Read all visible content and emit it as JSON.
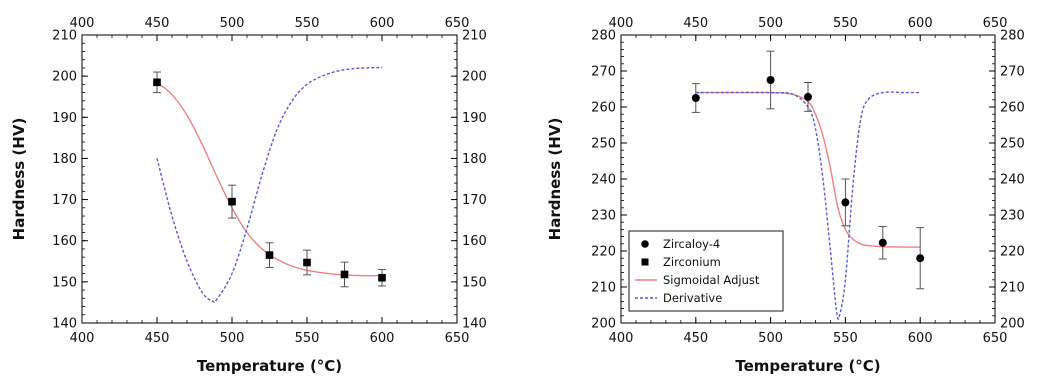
{
  "chart_data": [
    {
      "type": "scatter",
      "xlabel": "Temperature (°C)",
      "ylabel": "Hardness (HV)",
      "xlim": [
        400,
        650
      ],
      "ylim": [
        140,
        210
      ],
      "xticks": [
        400,
        450,
        500,
        550,
        600,
        650
      ],
      "yticks": [
        140,
        150,
        160,
        170,
        180,
        190,
        200,
        210
      ],
      "grid": false,
      "legend": null,
      "series": [
        {
          "name": "Zirconium",
          "kind": "points",
          "marker": "square",
          "color": "#000000",
          "points": [
            {
              "x": 450,
              "y": 198.5,
              "err": 2.5
            },
            {
              "x": 500,
              "y": 169.5,
              "err": 4.0
            },
            {
              "x": 525,
              "y": 156.5,
              "err": 3.0
            },
            {
              "x": 550,
              "y": 154.7,
              "err": 3.0
            },
            {
              "x": 575,
              "y": 151.8,
              "err": 3.0
            },
            {
              "x": 600,
              "y": 151.0,
              "err": 2.0
            }
          ]
        },
        {
          "name": "Sigmoidal Adjust",
          "kind": "line",
          "style": "solid",
          "color": "#f08080",
          "x": [
            450,
            460,
            470,
            480,
            490,
            500,
            510,
            520,
            530,
            540,
            550,
            560,
            570,
            580,
            590,
            600
          ],
          "y": [
            198.5,
            195.5,
            190.5,
            183.5,
            175.5,
            168.0,
            162.0,
            158.0,
            155.5,
            153.8,
            152.8,
            152.2,
            151.8,
            151.6,
            151.5,
            151.5
          ]
        },
        {
          "name": "Derivative",
          "kind": "line",
          "style": "dashed",
          "color": "#5b5bd6",
          "x": [
            450,
            460,
            470,
            480,
            487,
            490,
            500,
            510,
            520,
            530,
            540,
            550,
            560,
            570,
            580,
            590,
            600
          ],
          "y": [
            180.0,
            166.0,
            155.0,
            147.5,
            145.3,
            145.8,
            152.0,
            163.0,
            176.0,
            187.0,
            194.0,
            198.0,
            200.0,
            201.2,
            201.8,
            202.0,
            202.1
          ]
        }
      ]
    },
    {
      "type": "scatter",
      "xlabel": "Temperature (°C)",
      "ylabel": "Hardness (HV)",
      "xlim": [
        400,
        650
      ],
      "ylim": [
        200,
        280
      ],
      "xticks": [
        400,
        450,
        500,
        550,
        600,
        650
      ],
      "yticks": [
        200,
        210,
        220,
        230,
        240,
        250,
        260,
        270,
        280
      ],
      "grid": false,
      "legend": {
        "position": "bottom-left",
        "entries": [
          {
            "label": "Zircaloy-4",
            "kind": "circle"
          },
          {
            "label": "Zirconium",
            "kind": "square"
          },
          {
            "label": "Sigmoidal Adjust",
            "kind": "solid-line"
          },
          {
            "label": "Derivative",
            "kind": "dashed-line"
          }
        ]
      },
      "series": [
        {
          "name": "Zircaloy-4",
          "kind": "points",
          "marker": "circle",
          "color": "#000000",
          "points": [
            {
              "x": 450,
              "y": 262.5,
              "err": 4.0
            },
            {
              "x": 500,
              "y": 267.5,
              "err": 8.0
            },
            {
              "x": 525,
              "y": 262.8,
              "err": 4.0
            },
            {
              "x": 550,
              "y": 233.5,
              "err": 6.5
            },
            {
              "x": 575,
              "y": 222.3,
              "err": 4.5
            },
            {
              "x": 600,
              "y": 218.0,
              "err": 8.5
            }
          ]
        },
        {
          "name": "Sigmoidal Adjust",
          "kind": "line",
          "style": "solid",
          "color": "#f08080",
          "x": [
            450,
            480,
            500,
            515,
            525,
            530,
            535,
            540,
            545,
            550,
            555,
            560,
            565,
            575,
            590,
            600
          ],
          "y": [
            264.0,
            264.0,
            264.0,
            263.5,
            261.5,
            258.0,
            252.0,
            243.0,
            232.0,
            226.0,
            223.3,
            222.0,
            221.5,
            221.2,
            221.1,
            221.1
          ]
        },
        {
          "name": "Derivative",
          "kind": "line",
          "style": "dashed",
          "color": "#5b5bd6",
          "x": [
            450,
            500,
            515,
            525,
            530,
            535,
            540,
            544,
            546,
            550,
            555,
            560,
            565,
            575,
            590,
            600
          ],
          "y": [
            264.0,
            264.0,
            263.5,
            260.0,
            254.0,
            240.0,
            220.0,
            203.5,
            202.0,
            212.0,
            238.0,
            256.0,
            262.0,
            264.0,
            264.0,
            264.0
          ]
        }
      ]
    }
  ]
}
